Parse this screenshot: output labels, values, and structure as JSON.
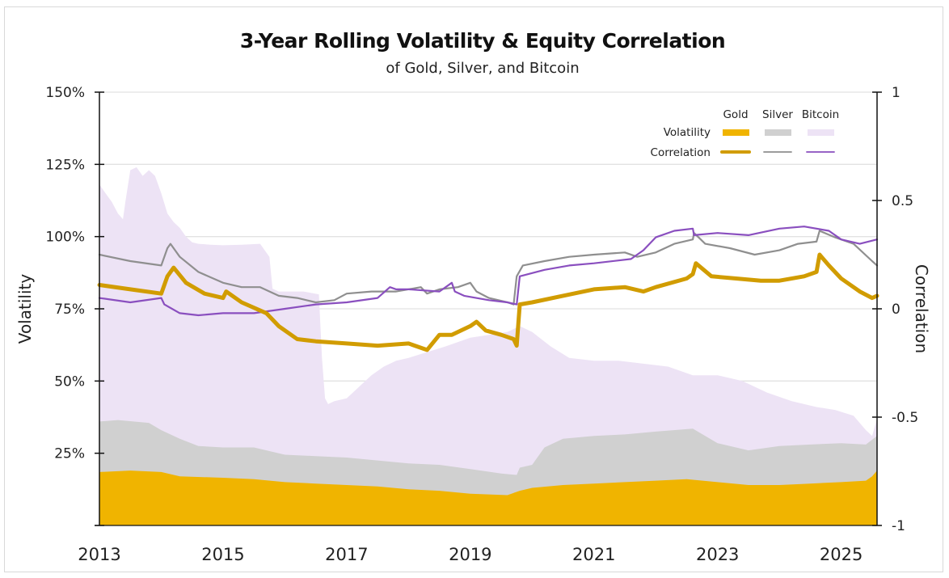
{
  "chart_data": {
    "type": "line",
    "title": "3-Year Rolling Volatility & Equity Correlation",
    "subtitle": "of Gold, Silver, and Bitcoin",
    "xlabel": "",
    "ylabel": "Volatility",
    "y2label": "Correlation",
    "xlim": [
      2013.0,
      2025.58
    ],
    "ylim": [
      0,
      1.5
    ],
    "y2lim": [
      -1,
      1
    ],
    "x_ticks": [
      "2013",
      "2015",
      "2017",
      "2019",
      "2021",
      "2023",
      "2025"
    ],
    "x_tick_values": [
      2013,
      2015,
      2017,
      2019,
      2021,
      2023,
      2025
    ],
    "y_ticks": [
      "",
      "25%",
      "50%",
      "75%",
      "100%",
      "125%",
      "150%"
    ],
    "y_tick_values": [
      0,
      0.25,
      0.5,
      0.75,
      1.0,
      1.25,
      1.5
    ],
    "y2_ticks": [
      "-1",
      "-0.5",
      "0",
      "0.5",
      "1"
    ],
    "y2_tick_values": [
      -1,
      -0.5,
      0,
      0.5,
      1
    ],
    "grid": "horizontal",
    "legend": {
      "placement": "top-right",
      "columns": [
        "Gold",
        "Silver",
        "Bitcoin"
      ],
      "rows": [
        "Volatility",
        "Correlation"
      ]
    },
    "colors": {
      "gold_vol": "#f0b400",
      "silver_vol": "#d0d0d0",
      "bitcoin_vol": "#ede3f5",
      "gold_corr": "#d19c00",
      "silver_corr": "#8f8f8f",
      "bitcoin_corr": "#8a4fbf"
    },
    "series": [
      {
        "name": "Bitcoin Volatility",
        "kind": "area",
        "axis": "left",
        "color_key": "bitcoin_vol",
        "x": [
          2013.0,
          2013.1,
          2013.2,
          2013.3,
          2013.38,
          2013.42,
          2013.5,
          2013.6,
          2013.7,
          2013.8,
          2013.9,
          2014.0,
          2014.1,
          2014.2,
          2014.3,
          2014.4,
          2014.5,
          2014.6,
          2014.8,
          2015.0,
          2015.3,
          2015.6,
          2015.75,
          2015.8,
          2015.9,
          2016.0,
          2016.3,
          2016.55,
          2016.6,
          2016.65,
          2016.7,
          2016.8,
          2017.0,
          2017.2,
          2017.4,
          2017.6,
          2017.8,
          2018.0,
          2018.3,
          2018.6,
          2019.0,
          2019.3,
          2019.6,
          2019.8,
          2020.0,
          2020.3,
          2020.6,
          2021.0,
          2021.4,
          2021.8,
          2022.2,
          2022.6,
          2023.0,
          2023.4,
          2023.8,
          2024.2,
          2024.6,
          2024.9,
          2025.2,
          2025.4,
          2025.5,
          2025.58
        ],
        "y": [
          1.18,
          1.15,
          1.12,
          1.08,
          1.06,
          1.12,
          1.23,
          1.24,
          1.21,
          1.23,
          1.21,
          1.15,
          1.08,
          1.05,
          1.03,
          1.0,
          0.98,
          0.975,
          0.972,
          0.97,
          0.972,
          0.975,
          0.93,
          0.82,
          0.81,
          0.81,
          0.81,
          0.8,
          0.58,
          0.44,
          0.42,
          0.43,
          0.44,
          0.48,
          0.52,
          0.55,
          0.57,
          0.58,
          0.6,
          0.62,
          0.65,
          0.66,
          0.67,
          0.69,
          0.67,
          0.62,
          0.58,
          0.57,
          0.57,
          0.56,
          0.55,
          0.52,
          0.52,
          0.5,
          0.46,
          0.43,
          0.41,
          0.4,
          0.38,
          0.33,
          0.31,
          0.37
        ]
      },
      {
        "name": "Silver Volatility",
        "kind": "area",
        "axis": "left",
        "color_key": "silver_vol",
        "x": [
          2013.0,
          2013.3,
          2013.8,
          2014.0,
          2014.3,
          2014.6,
          2015.0,
          2015.5,
          2016.0,
          2016.5,
          2017.0,
          2017.5,
          2018.0,
          2018.5,
          2019.0,
          2019.5,
          2019.75,
          2019.8,
          2020.0,
          2020.2,
          2020.5,
          2021.0,
          2021.5,
          2022.0,
          2022.6,
          2022.8,
          2023.0,
          2023.5,
          2024.0,
          2024.5,
          2025.0,
          2025.4,
          2025.58
        ],
        "y": [
          0.36,
          0.365,
          0.355,
          0.33,
          0.3,
          0.275,
          0.27,
          0.27,
          0.245,
          0.24,
          0.235,
          0.225,
          0.215,
          0.21,
          0.195,
          0.18,
          0.175,
          0.2,
          0.21,
          0.27,
          0.3,
          0.31,
          0.315,
          0.325,
          0.335,
          0.31,
          0.285,
          0.26,
          0.275,
          0.28,
          0.285,
          0.28,
          0.31
        ]
      },
      {
        "name": "Gold Volatility",
        "kind": "area",
        "axis": "left",
        "color_key": "gold_vol",
        "x": [
          2013.0,
          2013.5,
          2014.0,
          2014.3,
          2015.0,
          2015.5,
          2016.0,
          2016.5,
          2017.0,
          2017.5,
          2018.0,
          2018.5,
          2019.0,
          2019.6,
          2019.8,
          2020.0,
          2020.5,
          2021.0,
          2021.5,
          2022.0,
          2022.5,
          2023.0,
          2023.5,
          2024.0,
          2024.5,
          2025.0,
          2025.4,
          2025.5,
          2025.58
        ],
        "y": [
          0.185,
          0.19,
          0.185,
          0.17,
          0.165,
          0.16,
          0.15,
          0.145,
          0.14,
          0.135,
          0.125,
          0.12,
          0.11,
          0.105,
          0.12,
          0.13,
          0.14,
          0.145,
          0.15,
          0.155,
          0.16,
          0.15,
          0.14,
          0.14,
          0.145,
          0.15,
          0.155,
          0.17,
          0.19
        ]
      },
      {
        "name": "Silver Correlation",
        "kind": "line",
        "axis": "right",
        "color_key": "silver_corr",
        "x": [
          2013.0,
          2013.5,
          2014.0,
          2014.1,
          2014.15,
          2014.3,
          2014.6,
          2015.0,
          2015.3,
          2015.6,
          2015.9,
          2016.2,
          2016.5,
          2016.8,
          2017.0,
          2017.4,
          2017.8,
          2018.2,
          2018.3,
          2018.5,
          2018.8,
          2019.0,
          2019.1,
          2019.3,
          2019.6,
          2019.7,
          2019.75,
          2019.85,
          2020.2,
          2020.6,
          2021.0,
          2021.5,
          2021.7,
          2022.0,
          2022.3,
          2022.6,
          2022.62,
          2022.8,
          2023.2,
          2023.6,
          2024.0,
          2024.3,
          2024.6,
          2024.65,
          2024.9,
          2025.2,
          2025.5,
          2025.58
        ],
        "y": [
          0.25,
          0.22,
          0.2,
          0.28,
          0.3,
          0.24,
          0.17,
          0.12,
          0.1,
          0.1,
          0.06,
          0.05,
          0.03,
          0.04,
          0.07,
          0.08,
          0.08,
          0.1,
          0.07,
          0.09,
          0.1,
          0.12,
          0.08,
          0.05,
          0.03,
          0.02,
          0.15,
          0.2,
          0.22,
          0.24,
          0.25,
          0.26,
          0.24,
          0.26,
          0.3,
          0.32,
          0.35,
          0.3,
          0.28,
          0.25,
          0.27,
          0.3,
          0.31,
          0.36,
          0.33,
          0.3,
          0.22,
          0.2
        ]
      },
      {
        "name": "Bitcoin Correlation",
        "kind": "line",
        "axis": "right",
        "color_key": "bitcoin_corr",
        "x": [
          2013.0,
          2013.5,
          2014.0,
          2014.05,
          2014.3,
          2014.6,
          2015.0,
          2015.5,
          2016.0,
          2016.5,
          2017.0,
          2017.5,
          2017.7,
          2017.8,
          2018.0,
          2018.5,
          2018.7,
          2018.75,
          2018.9,
          2019.3,
          2019.6,
          2019.75,
          2019.8,
          2020.2,
          2020.6,
          2021.0,
          2021.6,
          2021.8,
          2022.0,
          2022.3,
          2022.6,
          2022.62,
          2023.0,
          2023.5,
          2024.0,
          2024.4,
          2024.8,
          2025.0,
          2025.3,
          2025.58
        ],
        "y": [
          0.05,
          0.03,
          0.05,
          0.02,
          -0.02,
          -0.03,
          -0.02,
          -0.02,
          0.0,
          0.02,
          0.03,
          0.05,
          0.1,
          0.09,
          0.09,
          0.08,
          0.12,
          0.08,
          0.06,
          0.04,
          0.03,
          0.02,
          0.15,
          0.18,
          0.2,
          0.21,
          0.23,
          0.27,
          0.33,
          0.36,
          0.37,
          0.34,
          0.35,
          0.34,
          0.37,
          0.38,
          0.36,
          0.32,
          0.3,
          0.32
        ]
      },
      {
        "name": "Gold Correlation",
        "kind": "line",
        "axis": "right",
        "color_key": "gold_corr",
        "x": [
          2013.0,
          2013.5,
          2014.0,
          2014.1,
          2014.2,
          2014.4,
          2014.7,
          2015.0,
          2015.05,
          2015.3,
          2015.7,
          2015.9,
          2016.2,
          2016.5,
          2017.0,
          2017.5,
          2018.0,
          2018.3,
          2018.5,
          2018.7,
          2019.0,
          2019.1,
          2019.25,
          2019.5,
          2019.7,
          2019.75,
          2019.8,
          2020.0,
          2020.5,
          2021.0,
          2021.5,
          2021.8,
          2022.0,
          2022.5,
          2022.6,
          2022.65,
          2022.9,
          2023.3,
          2023.7,
          2024.0,
          2024.4,
          2024.6,
          2024.65,
          2024.8,
          2025.0,
          2025.3,
          2025.5,
          2025.58
        ],
        "y": [
          0.11,
          0.09,
          0.07,
          0.15,
          0.19,
          0.12,
          0.07,
          0.05,
          0.08,
          0.03,
          -0.02,
          -0.08,
          -0.14,
          -0.15,
          -0.16,
          -0.17,
          -0.16,
          -0.19,
          -0.12,
          -0.12,
          -0.08,
          -0.06,
          -0.1,
          -0.12,
          -0.14,
          -0.17,
          0.02,
          0.03,
          0.06,
          0.09,
          0.1,
          0.08,
          0.1,
          0.14,
          0.16,
          0.21,
          0.15,
          0.14,
          0.13,
          0.13,
          0.15,
          0.17,
          0.25,
          0.2,
          0.14,
          0.08,
          0.05,
          0.06
        ]
      }
    ]
  }
}
